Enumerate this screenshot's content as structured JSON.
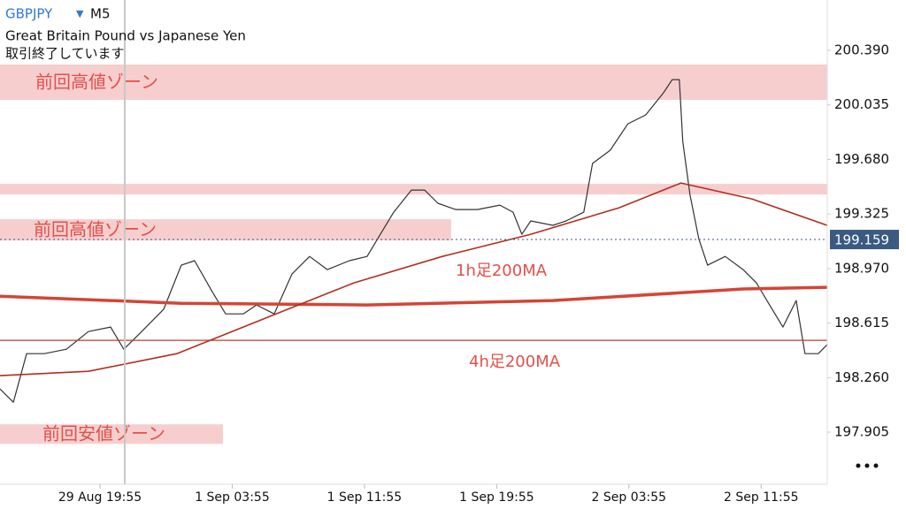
{
  "chart_data": {
    "type": "line",
    "symbol": "GBPJPY",
    "timeframe": "M5",
    "title": "Great Britain Pound vs Japanese Yen",
    "subtitle": "取引終了しています",
    "x": [
      -6.05,
      -5.24,
      -4.44,
      -3.37,
      -2.03,
      -0.7,
      0.64,
      1.44,
      2.52,
      3.85,
      4.92,
      5.72,
      6.79,
      7.6,
      8.67,
      9.47,
      10.54,
      11.61,
      12.68,
      13.75,
      15.09,
      16.16,
      16.96,
      17.77,
      18.84,
      19.64,
      20.44,
      21.51,
      22.85,
      24.19,
      24.99,
      25.52,
      26.06,
      27.4,
      28.2,
      29.27,
      29.8,
      30.87,
      31.94,
      33.02,
      34.09,
      34.62,
      35.05,
      35.26,
      35.69,
      36.23,
      36.76,
      37.83,
      38.91,
      39.71,
      40.51,
      41.32,
      42.12,
      42.65,
      43.46,
      43.99
    ],
    "xlim": [
      -6.05,
      44
    ],
    "xticks": [
      {
        "value": 0,
        "label": "29 Aug 19:55"
      },
      {
        "value": 8,
        "label": "1 Sep 03:55"
      },
      {
        "value": 16,
        "label": "1 Sep 11:55"
      },
      {
        "value": 24,
        "label": "1 Sep 19:55"
      },
      {
        "value": 32,
        "label": "2 Sep 03:55"
      },
      {
        "value": 40,
        "label": "2 Sep 11:55"
      }
    ],
    "ylim": [
      197.566,
      200.718
    ],
    "yticks": [
      {
        "value": 200.39,
        "label": "200.390"
      },
      200.035,
      {
        "value": 199.68,
        "label": "199.680"
      },
      199.325,
      {
        "value": 198.97,
        "label": "198.970"
      },
      198.615,
      {
        "value": 198.26,
        "label": "198.260"
      },
      197.905
    ],
    "current_price": 199.159,
    "series": [
      {
        "color": "#333333",
        "values": [
          198.186,
          198.1,
          198.416,
          198.416,
          198.445,
          198.56,
          198.589,
          198.445,
          198.56,
          198.704,
          198.992,
          199.021,
          198.819,
          198.675,
          198.675,
          198.733,
          198.675,
          198.934,
          199.049,
          198.963,
          199.021,
          199.049,
          199.193,
          199.337,
          199.481,
          199.481,
          199.395,
          199.354,
          199.354,
          199.383,
          199.337,
          199.193,
          199.28,
          199.251,
          199.28,
          199.337,
          199.654,
          199.74,
          199.912,
          199.97,
          200.114,
          200.2,
          200.2,
          199.797,
          199.452,
          199.164,
          198.992,
          199.049,
          198.963,
          198.877,
          198.733,
          198.589,
          198.762,
          198.416,
          198.416,
          198.474
        ]
      },
      {
        "name": "1h足200MA",
        "color": "#d44535",
        "x": [
          -6.05,
          4.92,
          16.16,
          27.4,
          38.91,
          43.99
        ],
        "values": [
          198.79,
          198.744,
          198.733,
          198.762,
          198.837,
          198.848
        ]
      },
      {
        "name": "4h足200MA",
        "color": "#c23b2e",
        "x": [
          -6.05,
          43.99
        ],
        "values": [
          198.503,
          198.503
        ]
      },
      {
        "color": "#b0301f",
        "x": [
          -6.05,
          -0.7,
          4.65,
          10.0,
          15.36,
          20.71,
          26.06,
          31.41,
          35.15,
          39.44,
          43.99
        ],
        "values": [
          198.273,
          198.301,
          198.416,
          198.647,
          198.877,
          199.049,
          199.193,
          199.366,
          199.527,
          199.423,
          199.251
        ]
      }
    ],
    "zones": [
      {
        "label": "前回高値ゾーン",
        "ylim": [
          200.068,
          200.298
        ],
        "xlim": [
          -6.05,
          44
        ]
      },
      {
        "ylim": [
          199.452,
          199.521
        ],
        "xlim": [
          -6.05,
          44
        ]
      },
      {
        "label": "前回高値ゾーン",
        "ylim": [
          199.153,
          199.291
        ],
        "xlim": [
          -6.05,
          21.24
        ]
      },
      {
        "label": "前回安値ゾーン",
        "ylim": [
          197.829,
          197.956
        ],
        "xlim": [
          -6.05,
          7.44
        ]
      }
    ]
  }
}
